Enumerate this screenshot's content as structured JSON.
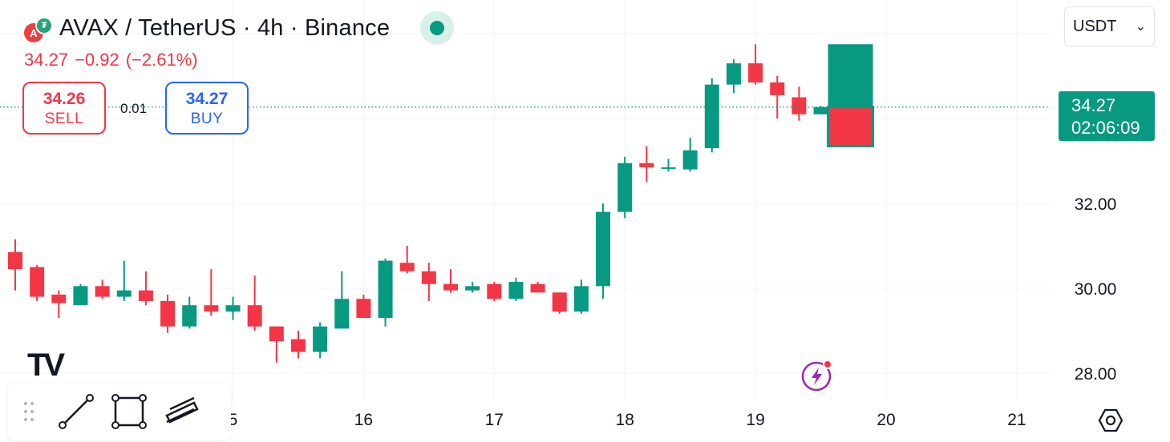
{
  "header": {
    "title": "AVAX / TetherUS · 4h · Binance",
    "logo_letter": "A",
    "logo_sub_letter": "₮",
    "last": "34.27",
    "change": "−0.92",
    "change_pct": "(−2.61%)"
  },
  "trade": {
    "sell_price": "34.26",
    "sell_label": "SELL",
    "spread": "0.01",
    "buy_price": "34.27",
    "buy_label": "BUY"
  },
  "currency": {
    "value": "USDT",
    "chevron": "⌄"
  },
  "price_tag": {
    "price": "34.27",
    "countdown": "02:06:09"
  },
  "tv_logo_text": "TV",
  "colors": {
    "up": "#089981",
    "down": "#f23645",
    "grid": "#f0f3fa"
  },
  "chart_data": {
    "type": "candlestick",
    "title": "AVAX / TetherUS · 4h · Binance",
    "y_ticks": [
      "28.00",
      "30.00",
      "32.00"
    ],
    "x_ticks": [
      {
        "label": "5",
        "index": -0.2
      },
      {
        "label": "16",
        "index": 5.8
      },
      {
        "label": "17",
        "index": 11.8
      },
      {
        "label": "18",
        "index": 17.8
      },
      {
        "label": "19",
        "index": 23.8
      },
      {
        "label": "20",
        "index": 29.8
      },
      {
        "label": "21",
        "index": 35.8
      }
    ],
    "ylim": [
      27.4,
      35.6
    ],
    "grid": true,
    "current_price": 34.27,
    "candles": [
      {
        "o": 30.85,
        "h": 31.15,
        "l": 29.95,
        "c": 30.45
      },
      {
        "o": 30.5,
        "h": 30.55,
        "l": 29.7,
        "c": 29.8
      },
      {
        "o": 29.85,
        "h": 29.95,
        "l": 29.3,
        "c": 29.65
      },
      {
        "o": 29.6,
        "h": 30.1,
        "l": 29.6,
        "c": 30.05
      },
      {
        "o": 30.05,
        "h": 30.2,
        "l": 29.75,
        "c": 29.8
      },
      {
        "o": 29.8,
        "h": 30.65,
        "l": 29.7,
        "c": 29.95
      },
      {
        "o": 29.95,
        "h": 30.4,
        "l": 29.6,
        "c": 29.7
      },
      {
        "o": 29.7,
        "h": 29.85,
        "l": 28.95,
        "c": 29.1
      },
      {
        "o": 29.1,
        "h": 29.8,
        "l": 29.05,
        "c": 29.6
      },
      {
        "o": 29.6,
        "h": 30.45,
        "l": 29.35,
        "c": 29.45
      },
      {
        "o": 29.45,
        "h": 29.8,
        "l": 29.25,
        "c": 29.6
      },
      {
        "o": 29.6,
        "h": 30.3,
        "l": 29.0,
        "c": 29.1
      },
      {
        "o": 29.1,
        "h": 29.1,
        "l": 28.25,
        "c": 28.75
      },
      {
        "o": 28.8,
        "h": 29.0,
        "l": 28.35,
        "c": 28.5
      },
      {
        "o": 28.5,
        "h": 29.2,
        "l": 28.35,
        "c": 29.1
      },
      {
        "o": 29.05,
        "h": 30.4,
        "l": 29.05,
        "c": 29.75
      },
      {
        "o": 29.75,
        "h": 29.85,
        "l": 29.3,
        "c": 29.3
      },
      {
        "o": 29.3,
        "h": 30.7,
        "l": 29.1,
        "c": 30.65
      },
      {
        "o": 30.6,
        "h": 31.0,
        "l": 30.35,
        "c": 30.4
      },
      {
        "o": 30.4,
        "h": 30.6,
        "l": 29.7,
        "c": 30.1
      },
      {
        "o": 30.1,
        "h": 30.45,
        "l": 29.9,
        "c": 29.95
      },
      {
        "o": 29.95,
        "h": 30.15,
        "l": 29.9,
        "c": 30.05
      },
      {
        "o": 30.1,
        "h": 30.15,
        "l": 29.7,
        "c": 29.75
      },
      {
        "o": 29.75,
        "h": 30.25,
        "l": 29.7,
        "c": 30.15
      },
      {
        "o": 30.1,
        "h": 30.15,
        "l": 29.9,
        "c": 29.9
      },
      {
        "o": 29.9,
        "h": 29.9,
        "l": 29.4,
        "c": 29.45
      },
      {
        "o": 29.45,
        "h": 30.2,
        "l": 29.4,
        "c": 30.05
      },
      {
        "o": 30.05,
        "h": 32.0,
        "l": 29.75,
        "c": 31.8
      },
      {
        "o": 31.8,
        "h": 33.1,
        "l": 31.65,
        "c": 32.95
      },
      {
        "o": 32.95,
        "h": 33.35,
        "l": 32.5,
        "c": 32.85
      },
      {
        "o": 32.85,
        "h": 33.05,
        "l": 32.75,
        "c": 32.85
      },
      {
        "o": 32.8,
        "h": 33.55,
        "l": 32.75,
        "c": 33.25
      },
      {
        "o": 33.3,
        "h": 34.95,
        "l": 33.2,
        "c": 34.8
      },
      {
        "o": 34.8,
        "h": 35.4,
        "l": 34.6,
        "c": 35.3
      },
      {
        "o": 35.3,
        "h": 35.75,
        "l": 34.8,
        "c": 34.85
      },
      {
        "o": 34.85,
        "h": 35.0,
        "l": 34.0,
        "c": 34.55
      },
      {
        "o": 34.5,
        "h": 34.75,
        "l": 33.95,
        "c": 34.1
      },
      {
        "o": 34.1,
        "h": 34.3,
        "l": 34.1,
        "c": 34.27
      }
    ]
  }
}
